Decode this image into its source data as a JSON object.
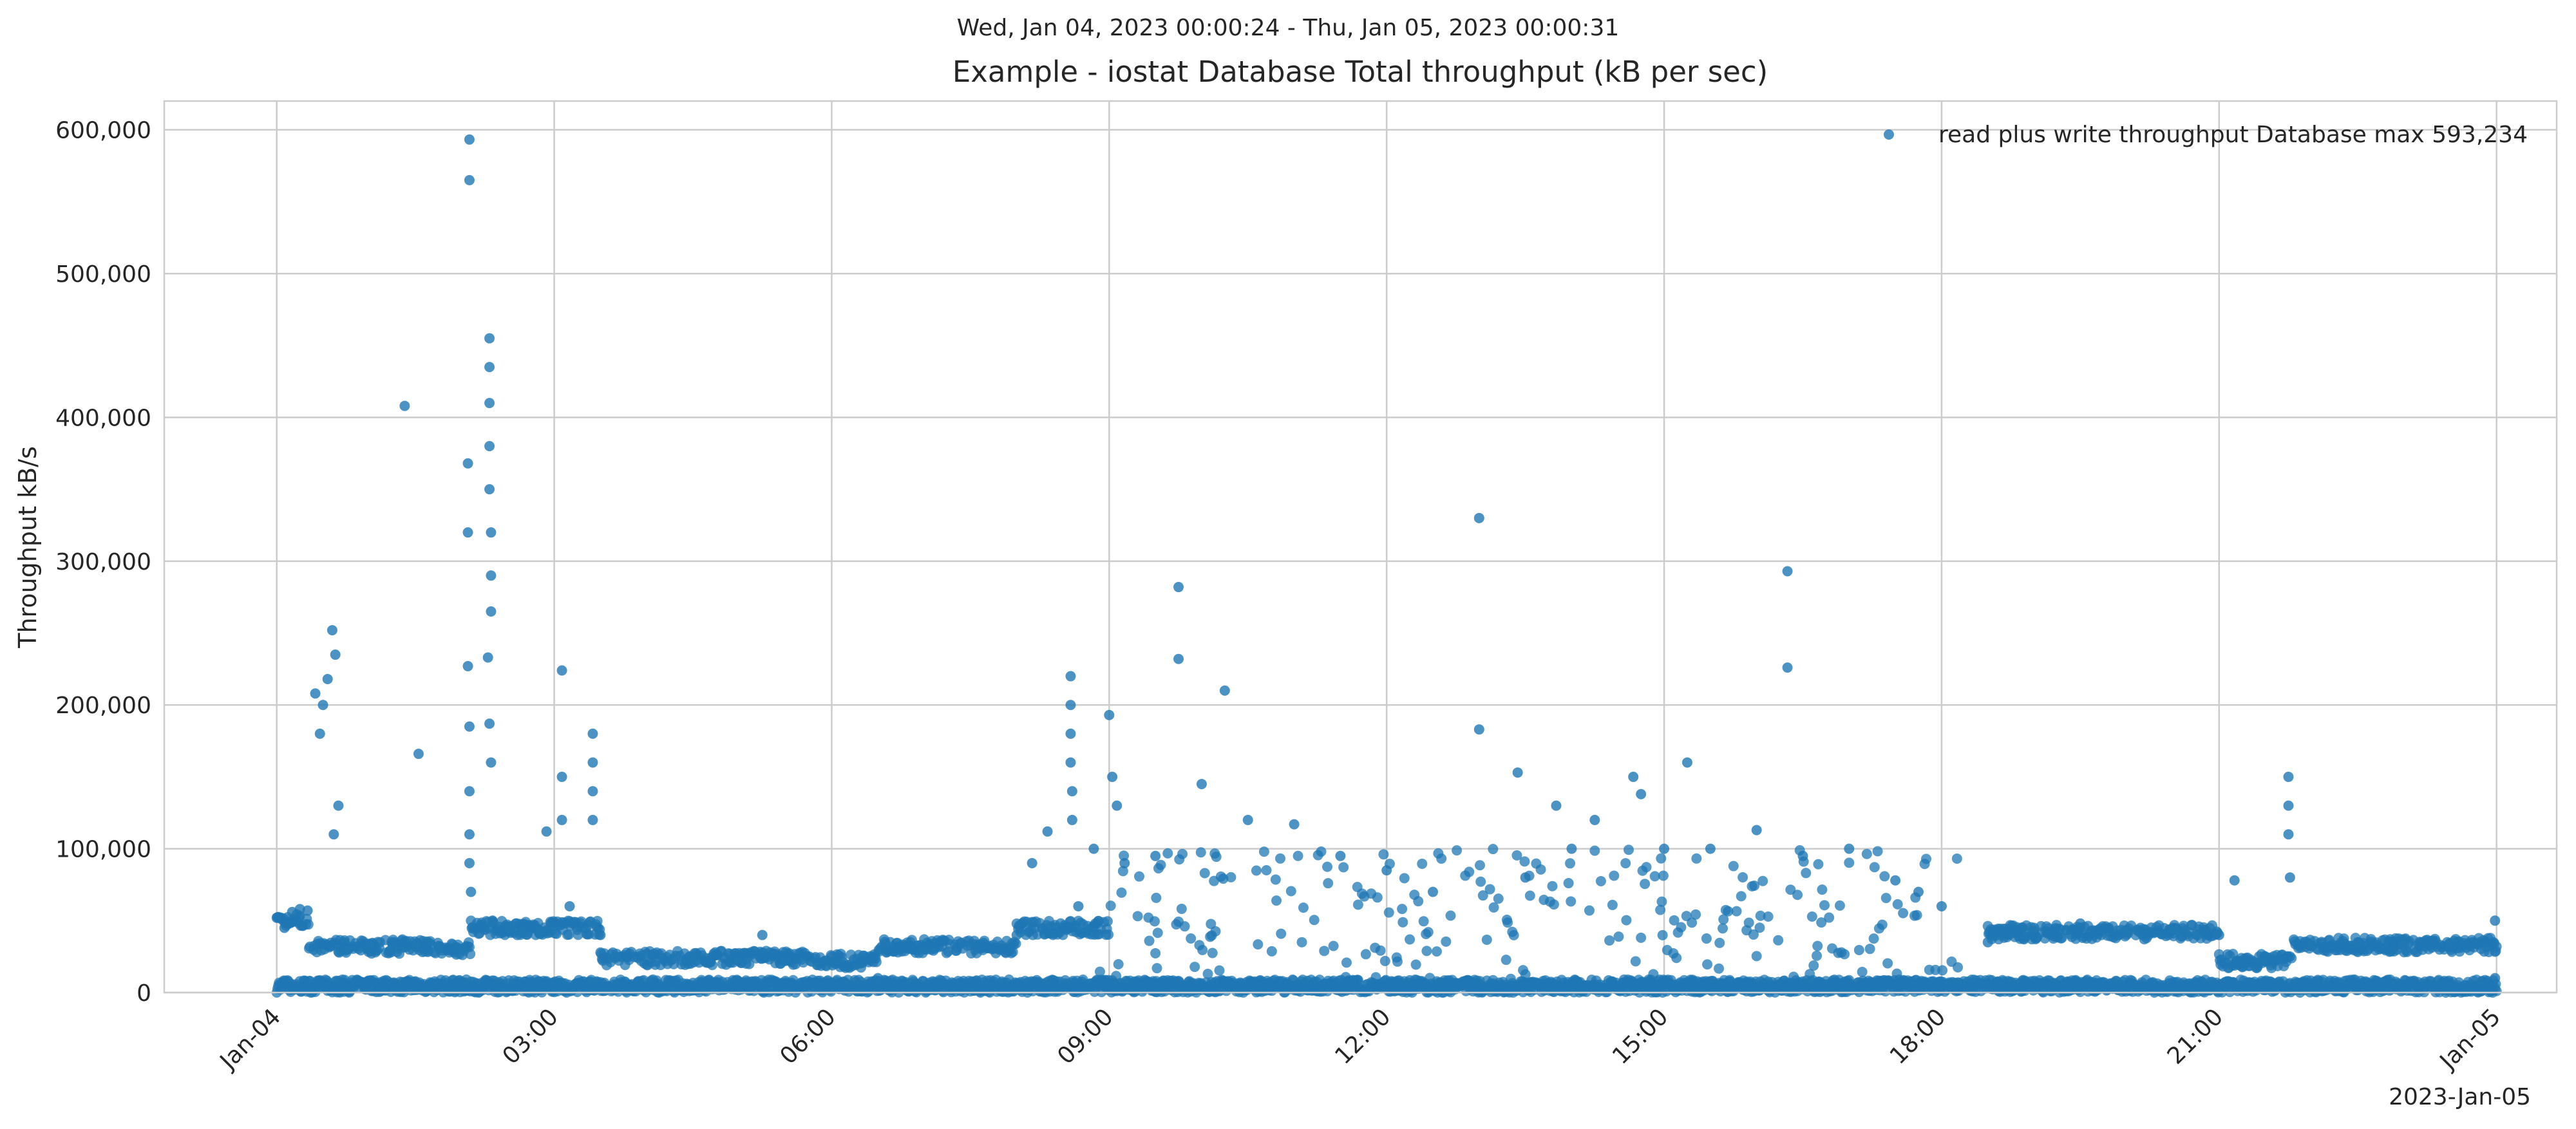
{
  "chart_data": {
    "type": "scatter",
    "suptitle": "Wed, Jan 04, 2023 00:00:24 - Thu, Jan 05, 2023 00:00:31",
    "title": "Example - iostat Database Total throughput (kB per sec)",
    "ylabel": "Throughput kB/s",
    "xlabel": "",
    "x_offset_label": "2023-Jan-05",
    "x_axis": "time",
    "xlim": [
      "2023-01-03 22:47",
      "2023-01-05 00:39"
    ],
    "ylim": [
      0,
      620000
    ],
    "yticks": [
      0,
      100000,
      200000,
      300000,
      400000,
      500000,
      600000
    ],
    "ytick_labels": [
      "0",
      "100,000",
      "200,000",
      "300,000",
      "400,000",
      "500,000",
      "600,000"
    ],
    "xticks": [
      "2023-01-04 00:00",
      "2023-01-04 03:00",
      "2023-01-04 06:00",
      "2023-01-04 09:00",
      "2023-01-04 12:00",
      "2023-01-04 15:00",
      "2023-01-04 18:00",
      "2023-01-04 21:00",
      "2023-01-05 00:00"
    ],
    "xtick_labels": [
      "Jan-04",
      "03:00",
      "06:00",
      "09:00",
      "12:00",
      "15:00",
      "18:00",
      "21:00",
      "Jan-05"
    ],
    "grid": true,
    "legend": "top-right",
    "series": [
      {
        "name": "read plus write throughput Database max 593,234",
        "color": "#1f77b4",
        "description": "dense scatter of ~1 sample per 10 s, mostly below 60,000 with bursts",
        "points": [
          [
            "2023-01-04 00:00",
            52000
          ],
          [
            "2023-01-04 00:05",
            45000
          ],
          [
            "2023-01-04 00:10",
            56000
          ],
          [
            "2023-01-04 00:15",
            58000
          ],
          [
            "2023-01-04 00:20",
            57000
          ],
          [
            "2023-01-04 00:25",
            208000
          ],
          [
            "2023-01-04 00:28",
            180000
          ],
          [
            "2023-01-04 00:30",
            200000
          ],
          [
            "2023-01-04 00:33",
            218000
          ],
          [
            "2023-01-04 00:36",
            252000
          ],
          [
            "2023-01-04 00:38",
            235000
          ],
          [
            "2023-01-04 00:40",
            130000
          ],
          [
            "2023-01-04 00:37",
            110000
          ],
          [
            "2023-01-04 00:45",
            30000
          ],
          [
            "2023-01-04 01:00",
            33000
          ],
          [
            "2023-01-04 01:15",
            34000
          ],
          [
            "2023-01-04 01:23",
            408000
          ],
          [
            "2023-01-04 01:30",
            33000
          ],
          [
            "2023-01-04 01:32",
            166000
          ],
          [
            "2023-01-04 01:45",
            31000
          ],
          [
            "2023-01-04 02:00",
            30000
          ],
          [
            "2023-01-04 02:05",
            593234
          ],
          [
            "2023-01-04 02:05",
            565000
          ],
          [
            "2023-01-04 02:04",
            368000
          ],
          [
            "2023-01-04 02:04",
            320000
          ],
          [
            "2023-01-04 02:04",
            227000
          ],
          [
            "2023-01-04 02:05",
            185000
          ],
          [
            "2023-01-04 02:05",
            140000
          ],
          [
            "2023-01-04 02:05",
            110000
          ],
          [
            "2023-01-04 02:05",
            90000
          ],
          [
            "2023-01-04 02:06",
            70000
          ],
          [
            "2023-01-04 02:18",
            455000
          ],
          [
            "2023-01-04 02:18",
            435000
          ],
          [
            "2023-01-04 02:18",
            410000
          ],
          [
            "2023-01-04 02:18",
            380000
          ],
          [
            "2023-01-04 02:18",
            350000
          ],
          [
            "2023-01-04 02:19",
            320000
          ],
          [
            "2023-01-04 02:19",
            290000
          ],
          [
            "2023-01-04 02:19",
            265000
          ],
          [
            "2023-01-04 02:17",
            233000
          ],
          [
            "2023-01-04 02:18",
            187000
          ],
          [
            "2023-01-04 02:19",
            160000
          ],
          [
            "2023-01-04 02:20",
            50000
          ],
          [
            "2023-01-04 02:30",
            45000
          ],
          [
            "2023-01-04 02:40",
            43000
          ],
          [
            "2023-01-04 02:50",
            42000
          ],
          [
            "2023-01-04 02:55",
            112000
          ],
          [
            "2023-01-04 03:05",
            224000
          ],
          [
            "2023-01-04 03:05",
            150000
          ],
          [
            "2023-01-04 03:05",
            120000
          ],
          [
            "2023-01-04 03:10",
            60000
          ],
          [
            "2023-01-04 03:25",
            180000
          ],
          [
            "2023-01-04 03:25",
            160000
          ],
          [
            "2023-01-04 03:25",
            140000
          ],
          [
            "2023-01-04 03:25",
            120000
          ],
          [
            "2023-01-04 03:30",
            40000
          ],
          [
            "2023-01-04 03:40",
            25000
          ],
          [
            "2023-01-04 04:00",
            27000
          ],
          [
            "2023-01-04 04:30",
            25000
          ],
          [
            "2023-01-04 05:00",
            22000
          ],
          [
            "2023-01-04 05:15",
            40000
          ],
          [
            "2023-01-04 05:30",
            22000
          ],
          [
            "2023-01-04 06:00",
            25000
          ],
          [
            "2023-01-04 06:30",
            10000
          ],
          [
            "2023-01-04 07:00",
            30000
          ],
          [
            "2023-01-04 07:30",
            33000
          ],
          [
            "2023-01-04 08:00",
            40000
          ],
          [
            "2023-01-04 08:10",
            90000
          ],
          [
            "2023-01-04 08:20",
            112000
          ],
          [
            "2023-01-04 08:35",
            220000
          ],
          [
            "2023-01-04 08:35",
            200000
          ],
          [
            "2023-01-04 08:35",
            180000
          ],
          [
            "2023-01-04 08:35",
            160000
          ],
          [
            "2023-01-04 08:36",
            140000
          ],
          [
            "2023-01-04 08:36",
            120000
          ],
          [
            "2023-01-04 08:40",
            60000
          ],
          [
            "2023-01-04 08:50",
            100000
          ],
          [
            "2023-01-04 09:00",
            193000
          ],
          [
            "2023-01-04 09:02",
            150000
          ],
          [
            "2023-01-04 09:05",
            130000
          ],
          [
            "2023-01-04 09:10",
            90000
          ],
          [
            "2023-01-04 09:30",
            95000
          ],
          [
            "2023-01-04 09:45",
            282000
          ],
          [
            "2023-01-04 09:45",
            232000
          ],
          [
            "2023-01-04 10:00",
            145000
          ],
          [
            "2023-01-04 10:15",
            210000
          ],
          [
            "2023-01-04 10:30",
            120000
          ],
          [
            "2023-01-04 11:00",
            117000
          ],
          [
            "2023-01-04 11:30",
            95000
          ],
          [
            "2023-01-04 12:00",
            85000
          ],
          [
            "2023-01-04 12:30",
            70000
          ],
          [
            "2023-01-04 13:00",
            330000
          ],
          [
            "2023-01-04 13:00",
            183000
          ],
          [
            "2023-01-04 13:25",
            153000
          ],
          [
            "2023-01-04 13:30",
            80000
          ],
          [
            "2023-01-04 13:50",
            130000
          ],
          [
            "2023-01-04 14:00",
            100000
          ],
          [
            "2023-01-04 14:15",
            120000
          ],
          [
            "2023-01-04 14:40",
            150000
          ],
          [
            "2023-01-04 14:45",
            138000
          ],
          [
            "2023-01-04 15:00",
            100000
          ],
          [
            "2023-01-04 15:15",
            160000
          ],
          [
            "2023-01-04 15:30",
            100000
          ],
          [
            "2023-01-04 16:00",
            113000
          ],
          [
            "2023-01-04 16:20",
            293000
          ],
          [
            "2023-01-04 16:20",
            226000
          ],
          [
            "2023-01-04 16:30",
            95000
          ],
          [
            "2023-01-04 17:00",
            100000
          ],
          [
            "2023-01-04 17:30",
            78000
          ],
          [
            "2023-01-04 17:45",
            70000
          ],
          [
            "2023-01-04 18:00",
            60000
          ],
          [
            "2023-01-04 18:30",
            35000
          ],
          [
            "2023-01-04 19:00",
            45000
          ],
          [
            "2023-01-04 19:30",
            48000
          ],
          [
            "2023-01-04 20:00",
            42000
          ],
          [
            "2023-01-04 20:30",
            45000
          ],
          [
            "2023-01-04 21:00",
            40000
          ],
          [
            "2023-01-04 21:10",
            78000
          ],
          [
            "2023-01-04 21:30",
            25000
          ],
          [
            "2023-01-04 21:45",
            150000
          ],
          [
            "2023-01-04 21:45",
            130000
          ],
          [
            "2023-01-04 21:45",
            110000
          ],
          [
            "2023-01-04 21:46",
            80000
          ],
          [
            "2023-01-04 22:00",
            33000
          ],
          [
            "2023-01-04 22:30",
            35000
          ],
          [
            "2023-01-04 23:00",
            33000
          ],
          [
            "2023-01-04 23:30",
            34000
          ],
          [
            "2023-01-04 23:59",
            50000
          ],
          [
            "2023-01-04 23:59",
            10000
          ]
        ]
      }
    ]
  }
}
